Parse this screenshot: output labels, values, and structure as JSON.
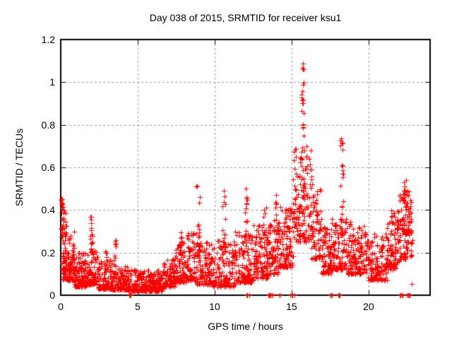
{
  "chart_data": {
    "type": "scatter",
    "title": "Day 038 of 2015, SRMTID for receiver ksu1",
    "xlabel": "GPS time / hours",
    "ylabel": "SRMTID / TECUs",
    "xlim": [
      0,
      24
    ],
    "ylim": [
      0,
      1.2
    ],
    "xticks": [
      {
        "v": 0,
        "label": "0"
      },
      {
        "v": 5,
        "label": "5"
      },
      {
        "v": 10,
        "label": "10"
      },
      {
        "v": 15,
        "label": "15"
      },
      {
        "v": 20,
        "label": "20"
      }
    ],
    "yticks": [
      {
        "v": 0,
        "label": "0"
      },
      {
        "v": 0.2,
        "label": "0.2"
      },
      {
        "v": 0.4,
        "label": "0.4"
      },
      {
        "v": 0.6,
        "label": "0.6"
      },
      {
        "v": 0.8,
        "label": "0.8"
      },
      {
        "v": 1,
        "label": "1"
      },
      {
        "v": 1.2,
        "label": "1.2"
      }
    ],
    "grid": true,
    "legend": null,
    "marker": {
      "shape": "plus",
      "color": "#ff0000",
      "size": 7
    },
    "colors": {
      "background": "#ffffff",
      "axis": "#000000",
      "grid": "#9a9a9a",
      "text": "#000000"
    },
    "seed": 2015038,
    "notable_points": [
      {
        "x": 15.7,
        "y": 1.09,
        "desc": "maximum"
      },
      {
        "x": 18.25,
        "y": 0.78,
        "desc": "secondary peak"
      },
      {
        "x": 8.95,
        "y": 0.53,
        "desc": "morning peak"
      },
      {
        "x": 22.4,
        "y": 0.57,
        "desc": "evening peak"
      },
      {
        "x": 0.05,
        "y": 0.46,
        "desc": "start-of-day column"
      }
    ],
    "scatter_model": {
      "bands_format": "[t_start_hr, t_end_hr, n_points, y_min, y_max, low_skew]",
      "bands": [
        [
          0.0,
          0.15,
          28,
          0.14,
          0.46,
          0.9
        ],
        [
          0.1,
          0.9,
          140,
          0.07,
          0.3,
          2.2
        ],
        [
          0.15,
          0.35,
          10,
          0.28,
          0.4,
          1.0
        ],
        [
          0.9,
          1.7,
          120,
          0.04,
          0.2,
          2.0
        ],
        [
          1.7,
          2.4,
          95,
          0.05,
          0.22,
          2.0
        ],
        [
          2.4,
          3.3,
          110,
          0.03,
          0.17,
          2.0
        ],
        [
          3.3,
          4.4,
          130,
          0.025,
          0.14,
          2.2
        ],
        [
          4.4,
          6.6,
          270,
          0.02,
          0.12,
          2.0
        ],
        [
          6.6,
          7.4,
          100,
          0.04,
          0.17,
          2.0
        ],
        [
          7.4,
          8.15,
          95,
          0.06,
          0.25,
          1.9
        ],
        [
          8.15,
          8.75,
          70,
          0.07,
          0.3,
          1.9
        ],
        [
          8.75,
          9.9,
          125,
          0.05,
          0.25,
          2.0
        ],
        [
          9.9,
          11.3,
          145,
          0.04,
          0.26,
          2.1
        ],
        [
          11.3,
          12.5,
          135,
          0.06,
          0.3,
          2.0
        ],
        [
          12.5,
          13.5,
          115,
          0.08,
          0.33,
          1.9
        ],
        [
          13.5,
          14.2,
          85,
          0.1,
          0.36,
          1.7
        ],
        [
          14.2,
          15.1,
          105,
          0.13,
          0.43,
          1.7
        ],
        [
          15.1,
          16.35,
          135,
          0.25,
          0.7,
          1.6
        ],
        [
          16.3,
          16.95,
          75,
          0.17,
          0.5,
          1.7
        ],
        [
          16.95,
          17.6,
          85,
          0.1,
          0.33,
          1.8
        ],
        [
          17.6,
          18.6,
          105,
          0.12,
          0.36,
          1.8
        ],
        [
          18.6,
          19.9,
          150,
          0.1,
          0.35,
          1.8
        ],
        [
          19.9,
          21.2,
          135,
          0.07,
          0.29,
          1.8
        ],
        [
          21.2,
          22.0,
          105,
          0.12,
          0.4,
          1.7
        ],
        [
          22.0,
          22.65,
          95,
          0.17,
          0.5,
          1.5
        ],
        [
          22.65,
          22.85,
          24,
          0.18,
          0.46,
          1.3
        ]
      ],
      "spikes_format": "[t_center_hr, half_width_hr, n_points, y_min, y_max, low_skew]",
      "spikes": [
        [
          2.0,
          0.09,
          16,
          0.2,
          0.375,
          1.3
        ],
        [
          2.95,
          0.08,
          8,
          0.14,
          0.23,
          1.2
        ],
        [
          3.5,
          0.08,
          11,
          0.13,
          0.3,
          1.4
        ],
        [
          7.75,
          0.09,
          10,
          0.18,
          0.3,
          1.3
        ],
        [
          8.93,
          0.1,
          26,
          0.18,
          0.52,
          1.5
        ],
        [
          10.6,
          0.1,
          16,
          0.2,
          0.49,
          1.4
        ],
        [
          12.05,
          0.08,
          14,
          0.24,
          0.52,
          1.4
        ],
        [
          13.27,
          0.1,
          10,
          0.27,
          0.42,
          1.2
        ],
        [
          13.95,
          0.07,
          8,
          0.3,
          0.49,
          1.2
        ],
        [
          15.75,
          0.12,
          34,
          0.45,
          1.0,
          2.1
        ],
        [
          15.73,
          0.05,
          5,
          0.97,
          1.095,
          1.0
        ],
        [
          18.25,
          0.1,
          26,
          0.28,
          0.785,
          1.6
        ],
        [
          22.35,
          0.12,
          9,
          0.4,
          0.57,
          1.2
        ]
      ],
      "zero_markers_hours": [
        4.45,
        4.5,
        4.55,
        12.08,
        12.13,
        12.25,
        13.5,
        13.55,
        13.6,
        13.68,
        13.75,
        14.2,
        14.28,
        14.9,
        15.0,
        15.06,
        15.2,
        17.5,
        17.56,
        17.62,
        18.02,
        18.08,
        18.14,
        22.03,
        22.09,
        22.15,
        22.21,
        22.5,
        22.56,
        22.62,
        22.68
      ],
      "outliers": [
        [
          22.8,
          0.054
        ]
      ]
    }
  }
}
